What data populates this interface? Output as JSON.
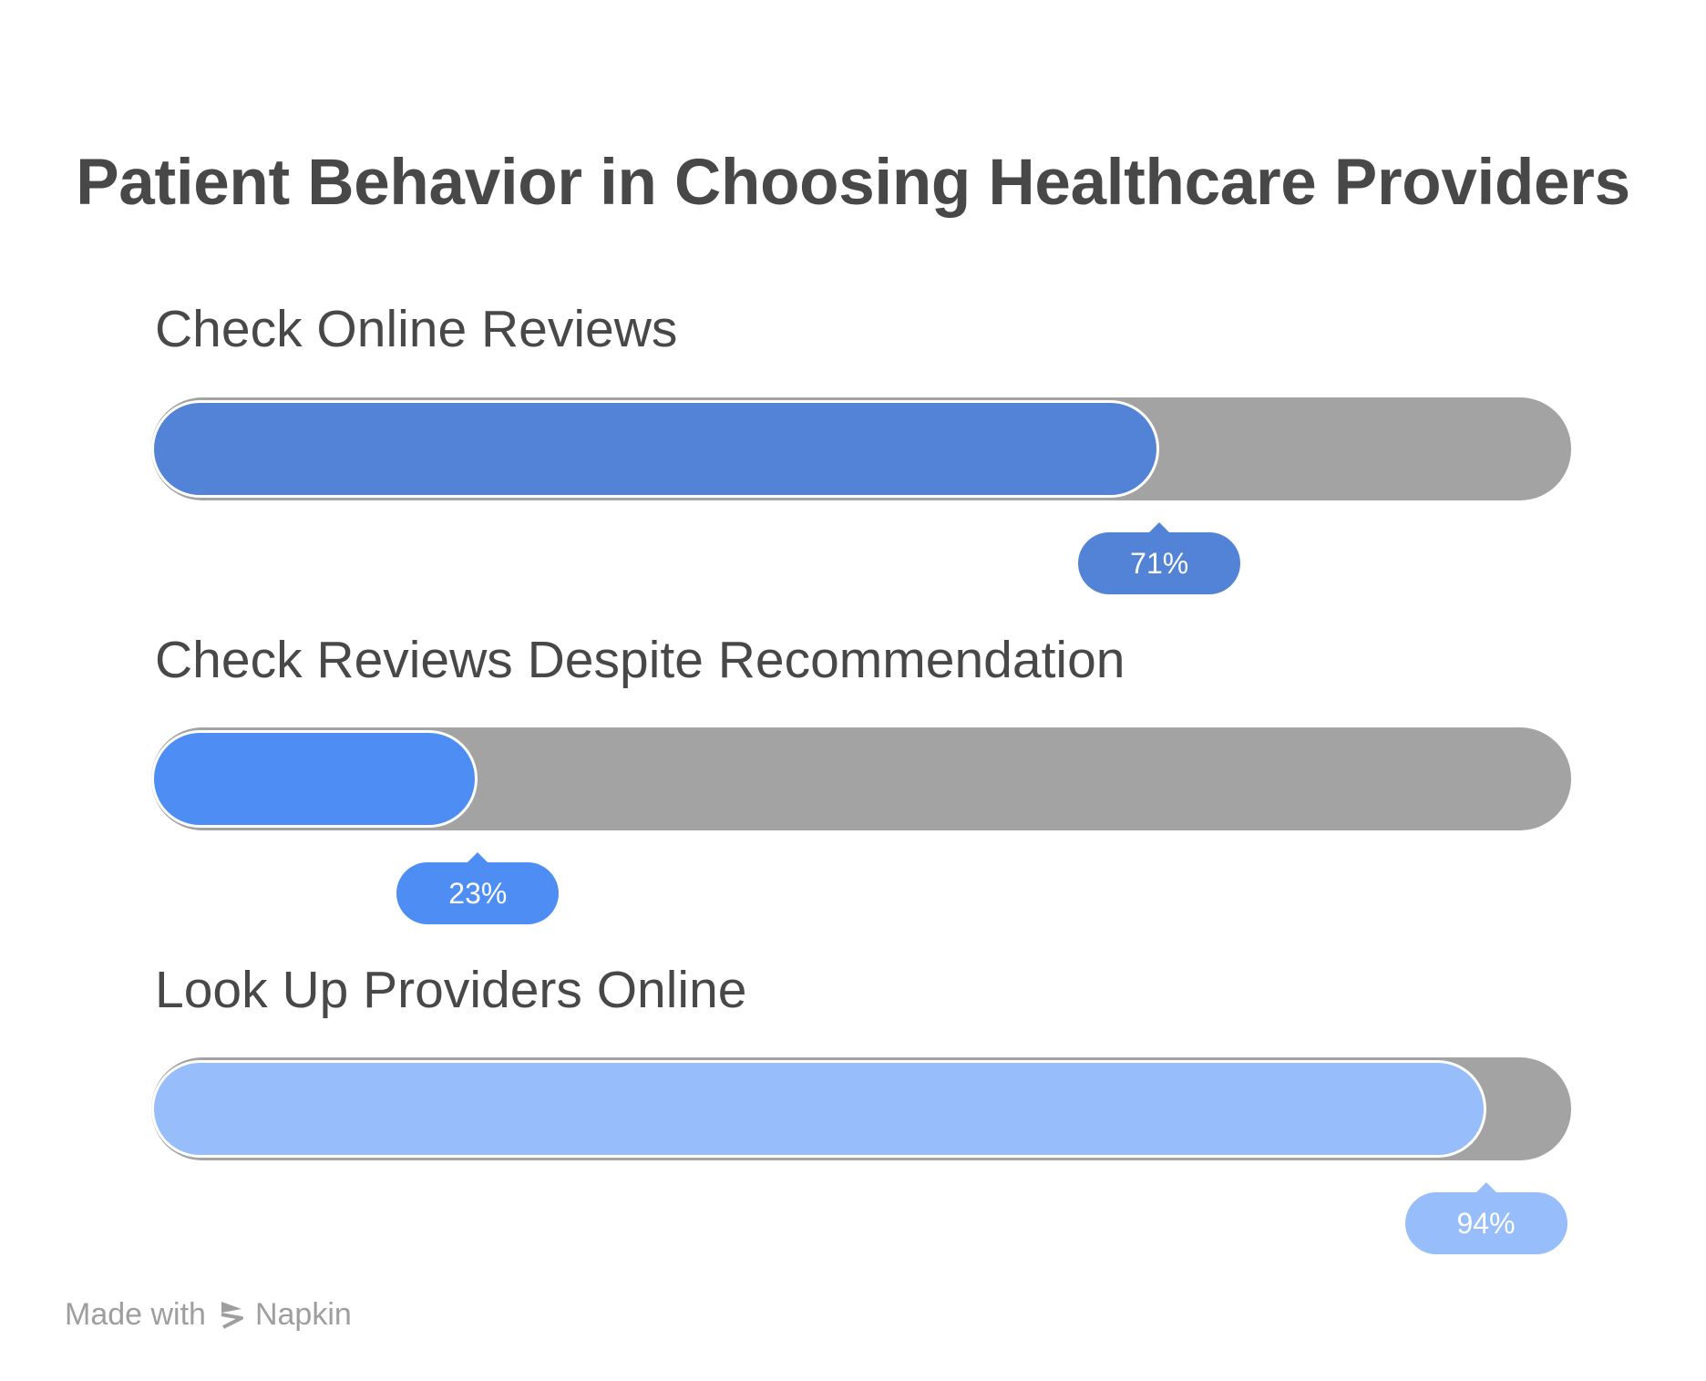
{
  "chart_data": {
    "type": "bar",
    "title": "Patient Behavior in Choosing Healthcare Providers",
    "unit": "%",
    "ylim": [
      0,
      100
    ],
    "categories": [
      "Check Online Reviews",
      "Check Reviews Despite Recommendation",
      "Look Up Providers Online"
    ],
    "values": [
      71,
      23,
      94
    ],
    "data_labels": [
      "71%",
      "23%",
      "94%"
    ],
    "colors": [
      "#5383d6",
      "#4e8ef4",
      "#97bdfb"
    ],
    "track_color": "#a3a3a3"
  },
  "footer": {
    "made_with": "Made with",
    "brand": "Napkin",
    "logo_icon": "napkin-logo-icon"
  }
}
